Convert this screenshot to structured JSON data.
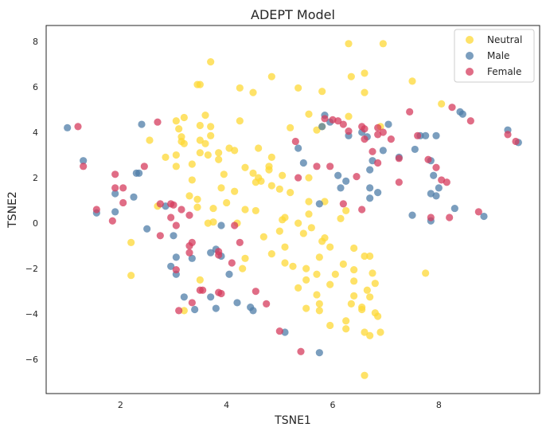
{
  "chart_data": {
    "type": "scatter",
    "title": "ADEPT Model",
    "xlabel": "TSNE1",
    "ylabel": "TSNE2",
    "xlim": [
      0.6,
      9.9
    ],
    "ylim": [
      -7.5,
      8.7
    ],
    "xticks": [
      2,
      4,
      6,
      8
    ],
    "yticks": [
      -6,
      -4,
      -2,
      0,
      2,
      4,
      6,
      8
    ],
    "grid": false,
    "legend": "top-right",
    "series": [
      {
        "name": "Neutral",
        "color": "#fdd835",
        "points": [
          [
            6.3,
            7.9
          ],
          [
            6.95,
            7.9
          ],
          [
            3.7,
            7.1
          ],
          [
            6.6,
            6.6
          ],
          [
            6.35,
            6.45
          ],
          [
            4.85,
            6.45
          ],
          [
            7.5,
            6.25
          ],
          [
            3.45,
            6.1
          ],
          [
            3.5,
            6.1
          ],
          [
            4.25,
            5.95
          ],
          [
            5.35,
            5.95
          ],
          [
            5.8,
            5.8
          ],
          [
            6.6,
            5.75
          ],
          [
            4.5,
            5.75
          ],
          [
            8.05,
            5.25
          ],
          [
            3.6,
            4.75
          ],
          [
            5.55,
            4.8
          ],
          [
            3.2,
            4.65
          ],
          [
            6.3,
            4.7
          ],
          [
            3.05,
            4.5
          ],
          [
            4.25,
            4.5
          ],
          [
            3.5,
            4.3
          ],
          [
            3.7,
            4.25
          ],
          [
            5.2,
            4.2
          ],
          [
            3.1,
            4.15
          ],
          [
            5.8,
            4.25
          ],
          [
            6.9,
            4.25
          ],
          [
            5.7,
            4.1
          ],
          [
            3.7,
            3.85
          ],
          [
            3.15,
            3.8
          ],
          [
            3.5,
            3.65
          ],
          [
            2.55,
            3.65
          ],
          [
            3.15,
            3.6
          ],
          [
            3.6,
            3.5
          ],
          [
            3.2,
            3.5
          ],
          [
            4.6,
            3.3
          ],
          [
            4.05,
            3.3
          ],
          [
            4.15,
            3.2
          ],
          [
            3.5,
            3.1
          ],
          [
            3.85,
            3.1
          ],
          [
            3.65,
            3.0
          ],
          [
            2.85,
            2.9
          ],
          [
            3.05,
            3.0
          ],
          [
            4.85,
            2.9
          ],
          [
            3.05,
            2.5
          ],
          [
            3.35,
            2.6
          ],
          [
            3.85,
            2.8
          ],
          [
            4.35,
            2.45
          ],
          [
            4.8,
            2.5
          ],
          [
            4.8,
            2.35
          ],
          [
            4.5,
            2.2
          ],
          [
            3.95,
            2.15
          ],
          [
            5.05,
            2.1
          ],
          [
            4.6,
            2.0
          ],
          [
            5.55,
            2.0
          ],
          [
            3.35,
            1.9
          ],
          [
            4.55,
            1.8
          ],
          [
            4.85,
            1.65
          ],
          [
            4.65,
            1.85
          ],
          [
            3.9,
            1.55
          ],
          [
            4.15,
            1.4
          ],
          [
            5.0,
            1.5
          ],
          [
            3.3,
            1.2
          ],
          [
            5.2,
            1.35
          ],
          [
            4.0,
            0.9
          ],
          [
            3.45,
            1.05
          ],
          [
            5.55,
            0.95
          ],
          [
            5.85,
            0.95
          ],
          [
            2.7,
            0.75
          ],
          [
            3.45,
            0.7
          ],
          [
            3.75,
            0.65
          ],
          [
            4.35,
            0.6
          ],
          [
            4.55,
            0.55
          ],
          [
            6.25,
            0.55
          ],
          [
            5.1,
            0.25
          ],
          [
            5.55,
            0.4
          ],
          [
            5.05,
            0.15
          ],
          [
            6.15,
            0.2
          ],
          [
            3.65,
            0.0
          ],
          [
            3.75,
            0.05
          ],
          [
            4.2,
            0.0
          ],
          [
            5.35,
            0.0
          ],
          [
            5.6,
            -0.2
          ],
          [
            5.0,
            -0.35
          ],
          [
            5.45,
            -0.45
          ],
          [
            4.7,
            -0.6
          ],
          [
            5.85,
            -0.65
          ],
          [
            5.8,
            -0.8
          ],
          [
            2.2,
            -0.85
          ],
          [
            5.95,
            -1.05
          ],
          [
            5.1,
            -1.05
          ],
          [
            6.4,
            -1.1
          ],
          [
            4.85,
            -1.35
          ],
          [
            6.6,
            -1.45
          ],
          [
            6.7,
            -1.45
          ],
          [
            5.75,
            -1.5
          ],
          [
            4.35,
            -1.55
          ],
          [
            5.1,
            -1.75
          ],
          [
            6.2,
            -1.8
          ],
          [
            5.25,
            -1.9
          ],
          [
            5.5,
            -2.0
          ],
          [
            4.3,
            -2.0
          ],
          [
            6.4,
            -2.05
          ],
          [
            6.75,
            -2.2
          ],
          [
            5.7,
            -2.25
          ],
          [
            7.75,
            -2.2
          ],
          [
            2.2,
            -2.3
          ],
          [
            6.05,
            -2.25
          ],
          [
            5.5,
            -2.5
          ],
          [
            6.4,
            -2.55
          ],
          [
            3.5,
            -2.5
          ],
          [
            6.8,
            -2.65
          ],
          [
            5.95,
            -2.7
          ],
          [
            5.35,
            -2.85
          ],
          [
            6.65,
            -2.95
          ],
          [
            5.7,
            -3.15
          ],
          [
            6.4,
            -3.2
          ],
          [
            6.7,
            -3.25
          ],
          [
            5.75,
            -3.55
          ],
          [
            6.35,
            -3.55
          ],
          [
            6.55,
            -3.7
          ],
          [
            5.5,
            -3.75
          ],
          [
            6.55,
            -3.8
          ],
          [
            5.75,
            -3.85
          ],
          [
            6.8,
            -3.95
          ],
          [
            3.2,
            -3.85
          ],
          [
            6.85,
            -4.1
          ],
          [
            6.25,
            -4.3
          ],
          [
            5.95,
            -4.5
          ],
          [
            6.25,
            -4.65
          ],
          [
            6.6,
            -4.8
          ],
          [
            6.9,
            -4.8
          ],
          [
            6.7,
            -4.95
          ],
          [
            6.6,
            -6.7
          ]
        ]
      },
      {
        "name": "Male",
        "color": "#4f7ea8",
        "points": [
          [
            1.0,
            4.2
          ],
          [
            2.4,
            4.35
          ],
          [
            5.85,
            4.75
          ],
          [
            5.95,
            4.45
          ],
          [
            5.8,
            4.25
          ],
          [
            6.55,
            4.0
          ],
          [
            6.3,
            3.85
          ],
          [
            6.65,
            3.8
          ],
          [
            7.05,
            4.35
          ],
          [
            7.65,
            3.85
          ],
          [
            7.75,
            3.85
          ],
          [
            7.95,
            3.85
          ],
          [
            8.4,
            4.9
          ],
          [
            8.45,
            4.8
          ],
          [
            9.3,
            4.1
          ],
          [
            9.5,
            3.55
          ],
          [
            1.3,
            2.75
          ],
          [
            5.35,
            3.3
          ],
          [
            6.95,
            3.2
          ],
          [
            6.75,
            2.75
          ],
          [
            7.55,
            3.25
          ],
          [
            7.25,
            2.9
          ],
          [
            7.85,
            2.75
          ],
          [
            2.3,
            2.2
          ],
          [
            2.35,
            2.2
          ],
          [
            5.45,
            2.65
          ],
          [
            6.7,
            2.35
          ],
          [
            6.1,
            2.1
          ],
          [
            7.9,
            2.1
          ],
          [
            1.9,
            1.3
          ],
          [
            2.25,
            1.15
          ],
          [
            6.25,
            1.85
          ],
          [
            6.15,
            1.55
          ],
          [
            6.7,
            1.55
          ],
          [
            6.85,
            1.35
          ],
          [
            7.85,
            1.3
          ],
          [
            8.0,
            1.55
          ],
          [
            7.95,
            1.2
          ],
          [
            2.85,
            0.75
          ],
          [
            1.55,
            0.45
          ],
          [
            1.9,
            0.5
          ],
          [
            5.75,
            0.85
          ],
          [
            6.7,
            1.1
          ],
          [
            7.5,
            0.35
          ],
          [
            7.85,
            0.1
          ],
          [
            8.3,
            0.65
          ],
          [
            8.85,
            0.3
          ],
          [
            2.5,
            -0.25
          ],
          [
            3.0,
            -0.55
          ],
          [
            3.9,
            -0.1
          ],
          [
            3.05,
            -1.5
          ],
          [
            3.05,
            -2.25
          ],
          [
            3.35,
            -1.55
          ],
          [
            3.8,
            -1.15
          ],
          [
            3.7,
            -1.3
          ],
          [
            3.9,
            -1.45
          ],
          [
            4.05,
            -2.25
          ],
          [
            2.95,
            -1.9
          ],
          [
            3.2,
            -3.25
          ],
          [
            3.7,
            -3.25
          ],
          [
            3.8,
            -3.75
          ],
          [
            4.2,
            -3.5
          ],
          [
            4.45,
            -3.7
          ],
          [
            4.5,
            -3.85
          ],
          [
            3.4,
            -3.8
          ],
          [
            5.1,
            -4.8
          ],
          [
            5.75,
            -5.7
          ]
        ]
      },
      {
        "name": "Female",
        "color": "#d63c5e",
        "points": [
          [
            1.2,
            4.25
          ],
          [
            2.7,
            4.45
          ],
          [
            6.1,
            4.5
          ],
          [
            6.0,
            4.55
          ],
          [
            5.85,
            4.6
          ],
          [
            6.2,
            4.35
          ],
          [
            6.55,
            4.25
          ],
          [
            6.95,
            4.0
          ],
          [
            6.6,
            4.15
          ],
          [
            6.85,
            4.2
          ],
          [
            6.3,
            4.05
          ],
          [
            6.85,
            3.9
          ],
          [
            6.6,
            3.7
          ],
          [
            7.1,
            3.7
          ],
          [
            7.45,
            4.9
          ],
          [
            7.6,
            3.85
          ],
          [
            8.25,
            5.1
          ],
          [
            8.6,
            4.5
          ],
          [
            9.3,
            3.9
          ],
          [
            9.45,
            3.6
          ],
          [
            6.75,
            3.15
          ],
          [
            7.25,
            2.85
          ],
          [
            7.8,
            2.8
          ],
          [
            6.85,
            2.65
          ],
          [
            5.3,
            3.6
          ],
          [
            5.7,
            2.5
          ],
          [
            5.35,
            2.0
          ],
          [
            5.95,
            2.5
          ],
          [
            6.45,
            2.05
          ],
          [
            7.25,
            1.8
          ],
          [
            7.95,
            2.45
          ],
          [
            8.05,
            1.9
          ],
          [
            8.15,
            1.8
          ],
          [
            1.3,
            2.5
          ],
          [
            2.45,
            2.5
          ],
          [
            1.9,
            2.15
          ],
          [
            1.9,
            1.55
          ],
          [
            2.05,
            1.55
          ],
          [
            2.05,
            0.9
          ],
          [
            1.85,
            0.1
          ],
          [
            1.55,
            0.6
          ],
          [
            2.75,
            0.85
          ],
          [
            2.95,
            0.85
          ],
          [
            3.0,
            0.8
          ],
          [
            3.15,
            0.6
          ],
          [
            2.95,
            0.25
          ],
          [
            3.3,
            0.35
          ],
          [
            3.05,
            -0.1
          ],
          [
            2.75,
            -0.55
          ],
          [
            3.3,
            -1.0
          ],
          [
            3.3,
            -1.3
          ],
          [
            3.35,
            -0.85
          ],
          [
            3.85,
            -1.25
          ],
          [
            3.85,
            -1.4
          ],
          [
            4.1,
            -1.75
          ],
          [
            4.15,
            -0.1
          ],
          [
            4.25,
            -0.85
          ],
          [
            3.5,
            -2.95
          ],
          [
            3.55,
            -2.95
          ],
          [
            3.85,
            -3.05
          ],
          [
            3.9,
            -3.1
          ],
          [
            3.35,
            -3.5
          ],
          [
            3.1,
            -3.85
          ],
          [
            3.05,
            -2.05
          ],
          [
            4.55,
            -3.0
          ],
          [
            4.75,
            -3.55
          ],
          [
            5.0,
            -4.75
          ],
          [
            5.4,
            -5.65
          ],
          [
            7.85,
            0.25
          ],
          [
            8.2,
            0.25
          ],
          [
            8.75,
            0.5
          ],
          [
            6.2,
            0.85
          ],
          [
            6.55,
            0.6
          ]
        ]
      }
    ]
  }
}
